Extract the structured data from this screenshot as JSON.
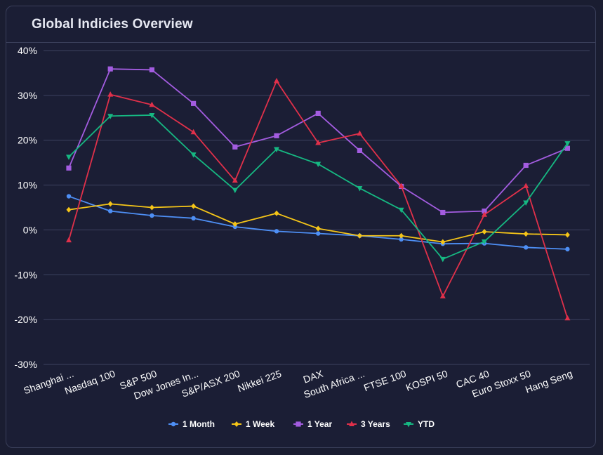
{
  "header": {
    "title": "Global Indicies Overview"
  },
  "chart_data": {
    "type": "line",
    "title": "Global Indicies Overview",
    "categories": [
      "Shanghai ...",
      "Nasdaq 100",
      "S&P 500",
      "Dow Jones In...",
      "S&P/ASX 200",
      "Nikkei 225",
      "DAX",
      "South Africa ...",
      "FTSE 100",
      "KOSPI 50",
      "CAC 40",
      "Euro Stoxx 50",
      "Hang Seng"
    ],
    "ylim": [
      -30,
      40
    ],
    "yticks": [
      -30,
      -20,
      -10,
      0,
      10,
      20,
      30,
      40
    ],
    "ytick_labels": [
      "-30%",
      "-20%",
      "-10%",
      "0%",
      "10%",
      "20%",
      "30%",
      "40%"
    ],
    "grid": true,
    "legend_position": "bottom",
    "series": [
      {
        "name": "1 Month",
        "color": "#4e8ff5",
        "marker": "circle",
        "values": [
          7.5,
          4.2,
          3.2,
          2.6,
          0.7,
          -0.3,
          -0.8,
          -1.3,
          -2.1,
          -3.1,
          -3.0,
          -3.9,
          -4.3
        ]
      },
      {
        "name": "1 Week",
        "color": "#f5c518",
        "marker": "diamond",
        "values": [
          4.5,
          5.8,
          5.0,
          5.3,
          1.3,
          3.7,
          0.3,
          -1.3,
          -1.3,
          -2.7,
          -0.4,
          -0.9,
          -1.1
        ]
      },
      {
        "name": "1 Year",
        "color": "#a35ce0",
        "marker": "square",
        "values": [
          13.8,
          35.9,
          35.7,
          28.2,
          18.5,
          21.0,
          26.0,
          17.7,
          9.7,
          3.9,
          4.2,
          14.4,
          18.2
        ]
      },
      {
        "name": "3 Years",
        "color": "#e0304a",
        "marker": "triangle",
        "values": [
          -2.3,
          30.2,
          27.9,
          21.8,
          11.0,
          33.2,
          19.4,
          21.5,
          9.8,
          -14.8,
          3.4,
          9.8,
          -19.7
        ]
      },
      {
        "name": "YTD",
        "color": "#16b882",
        "marker": "triangle-down",
        "values": [
          16.3,
          25.4,
          25.6,
          16.8,
          8.9,
          18.0,
          14.7,
          9.3,
          4.5,
          -6.5,
          -2.6,
          6.1,
          19.3
        ]
      }
    ]
  }
}
